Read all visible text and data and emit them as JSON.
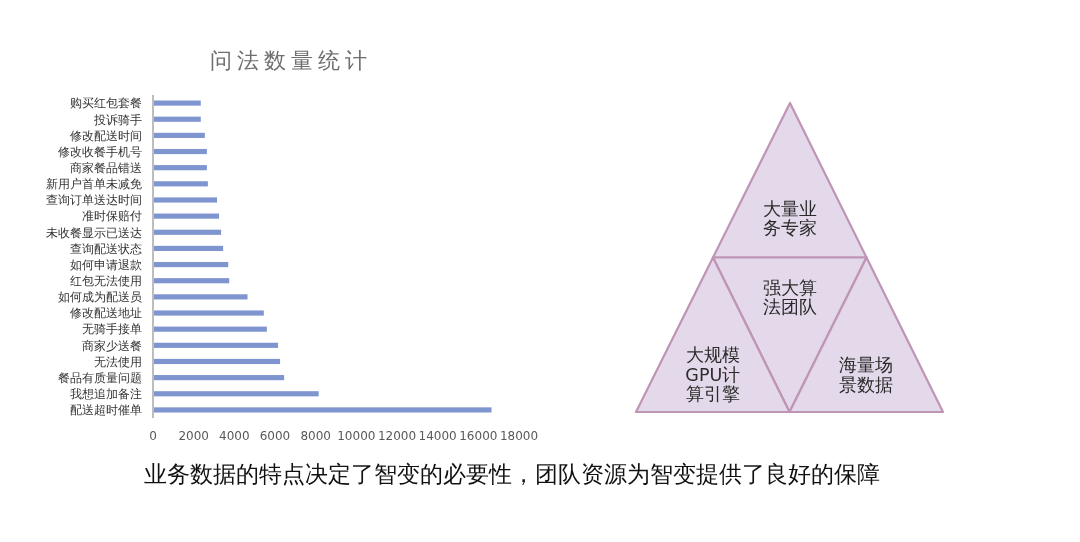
{
  "chart_data": [
    {
      "type": "bar",
      "orientation": "horizontal",
      "title": "问法数量统计",
      "categories": [
        "购买红包套餐",
        "投诉骑手",
        "修改配送时间",
        "修改收餐手机号",
        "商家餐品错送",
        "新用户首单未减免",
        "查询订单送达时间",
        "准时保赔付",
        "未收餐显示已送达",
        "查询配送状态",
        "如何申请退款",
        "红包无法使用",
        "如何成为配送员",
        "修改配送地址",
        "无骑手接单",
        "商家少送餐",
        "无法使用",
        "餐品有质量问题",
        "我想追加备注",
        "配送超时催单"
      ],
      "values": [
        2300,
        2300,
        2500,
        2600,
        2600,
        2650,
        3100,
        3200,
        3300,
        3400,
        3650,
        3700,
        4600,
        5400,
        5550,
        6100,
        6200,
        6400,
        8100,
        16600
      ],
      "color": "#7f95cf",
      "xlim": [
        0,
        18000
      ],
      "xticks": [
        0,
        2000,
        4000,
        6000,
        8000,
        10000,
        12000,
        14000,
        16000,
        18000
      ],
      "annotations": [
        "业务数据的特点决定了智变的必要性，团队资源为智变提供了良好的保障"
      ]
    },
    {
      "type": "other",
      "annotations": [
        "大量业务专家",
        "强大算法团队",
        "大规模GPU计算引擎",
        "海量场景数据"
      ]
    }
  ]
}
